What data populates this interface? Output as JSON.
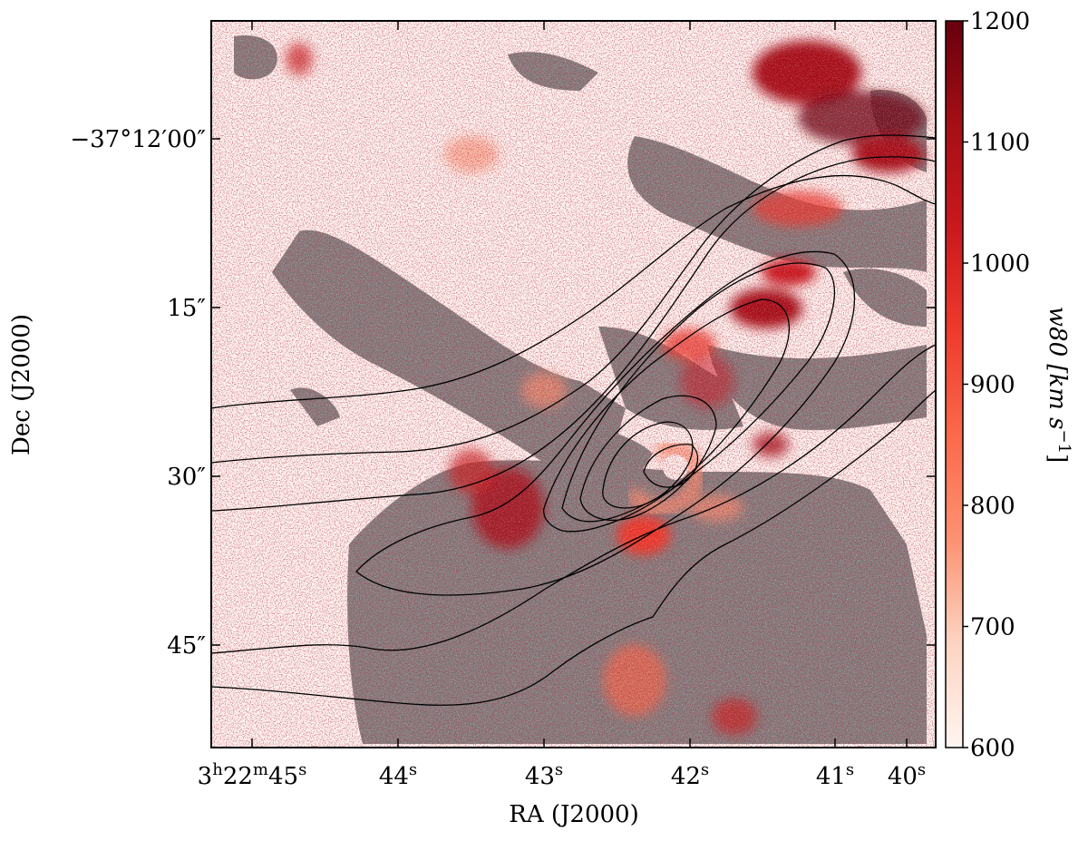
{
  "chart_data": {
    "type": "heatmap",
    "title": "",
    "xlabel": "RA (J2000)",
    "ylabel": "Dec (J2000)",
    "x_ticks": [
      {
        "value": "3h22m45s",
        "text": "3",
        "sup1": "h",
        "mid": "22",
        "sup2": "m",
        "tail": "45",
        "sup3": "s"
      },
      {
        "value": "3h22m44s",
        "text": "44",
        "sup1": "s"
      },
      {
        "value": "3h22m43s",
        "text": "43",
        "sup1": "s"
      },
      {
        "value": "3h22m42s",
        "text": "42",
        "sup1": "s"
      },
      {
        "value": "3h22m41s",
        "text": "41",
        "sup1": "s"
      },
      {
        "value": "3h22m40s",
        "text": "40",
        "sup1": "s"
      }
    ],
    "y_ticks": [
      {
        "value": "-37°12'00\"",
        "text": "−37°12′00″"
      },
      {
        "value": "-37°12'15\"",
        "text": "15″"
      },
      {
        "value": "-37°12'30\"",
        "text": "30″"
      },
      {
        "value": "-37°12'45\"",
        "text": "45″"
      }
    ],
    "colorbar": {
      "label": "w80 [km s−1]",
      "label_main": "w80 [km s",
      "label_sup": "−1",
      "label_end": "]",
      "range": [
        600,
        1200
      ],
      "ticks": [
        600,
        700,
        800,
        900,
        1000,
        1100,
        1200
      ],
      "colormap": "Reds",
      "colors": [
        "#fff5f0",
        "#fdd4c2",
        "#fc9272",
        "#fb6a4a",
        "#ef3b2c",
        "#cb181d",
        "#a50f15",
        "#67000d"
      ]
    },
    "masked_color": "#808080",
    "contour_color": "#000000",
    "grid": false,
    "legend": "none"
  }
}
